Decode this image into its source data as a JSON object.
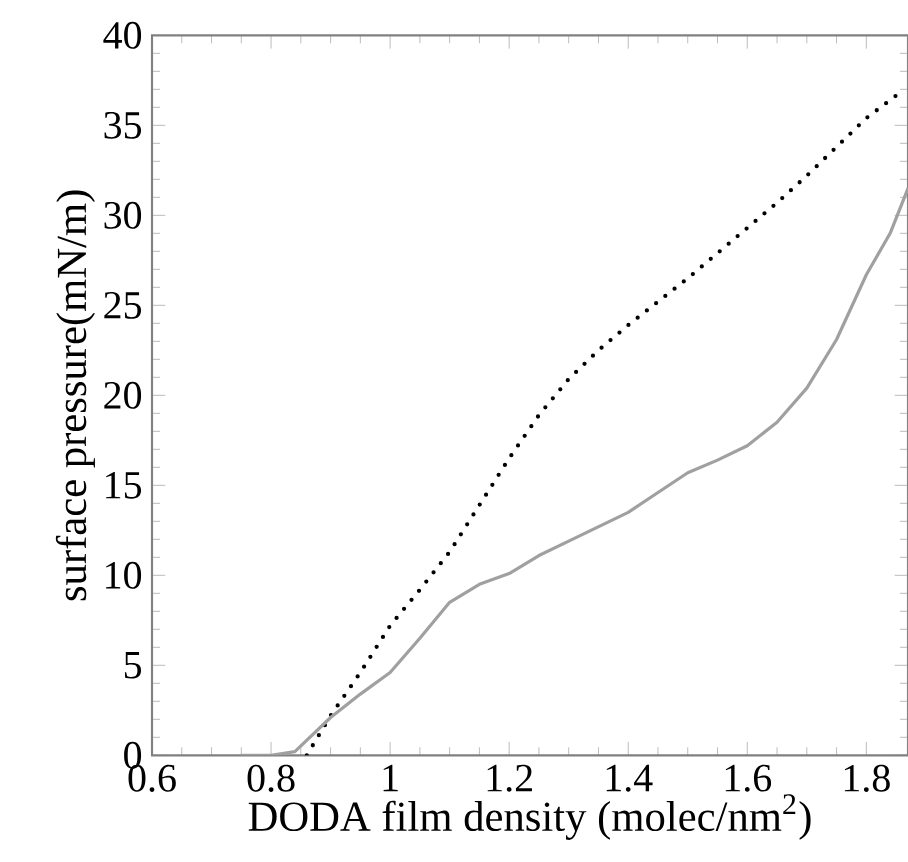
{
  "chart_data": {
    "type": "line",
    "xlabel": "DODA film density (molec/nm$^{2}$)",
    "ylabel": "surface pressure(mN/m)",
    "xlim": [
      0.6,
      1.87
    ],
    "ylim": [
      0,
      40
    ],
    "xticks": [
      0.6,
      0.8,
      1,
      1.2,
      1.4,
      1.6,
      1.8
    ],
    "yticks": [
      0,
      5,
      10,
      15,
      20,
      25,
      30,
      35,
      40
    ],
    "series": [
      {
        "color": "#000000",
        "line_style": "dotted",
        "x": [
          0.86,
          0.9,
          0.95,
          1.0,
          1.05,
          1.1,
          1.15,
          1.2,
          1.25,
          1.3,
          1.35,
          1.4,
          1.45,
          1.5,
          1.55,
          1.6,
          1.65,
          1.7,
          1.75,
          1.8,
          1.86
        ],
        "values": [
          0,
          2.2,
          4.6,
          7.2,
          9.2,
          11.3,
          13.9,
          16.5,
          18.9,
          20.9,
          22.5,
          23.9,
          25.2,
          26.5,
          27.9,
          29.3,
          30.7,
          32.2,
          33.8,
          35.4,
          36.9
        ]
      },
      {
        "color": "#a0a0a0",
        "line_style": "solid",
        "x": [
          0.75,
          0.8,
          0.84,
          0.9,
          0.95,
          1.0,
          1.05,
          1.1,
          1.15,
          1.2,
          1.25,
          1.3,
          1.35,
          1.4,
          1.45,
          1.5,
          1.55,
          1.6,
          1.65,
          1.7,
          1.75,
          1.8,
          1.84,
          1.87
        ],
        "values": [
          0,
          0,
          0.2,
          2.1,
          3.4,
          4.6,
          6.5,
          8.5,
          9.5,
          10.1,
          11.1,
          11.9,
          12.7,
          13.5,
          14.6,
          15.7,
          16.4,
          17.2,
          18.5,
          20.4,
          23.1,
          26.7,
          29.0,
          31.5
        ]
      }
    ]
  }
}
